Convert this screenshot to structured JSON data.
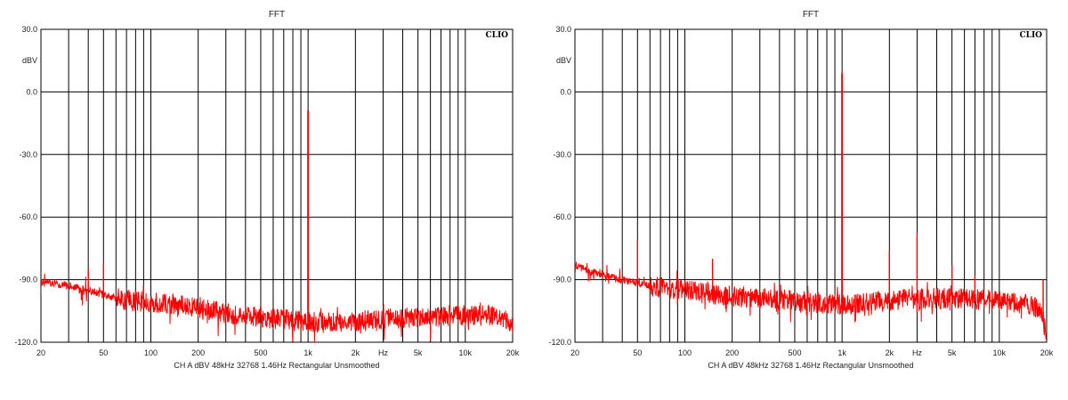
{
  "chart_data": [
    {
      "type": "line",
      "title": "FFT",
      "brand": "CLIO",
      "ylabel": "dBV",
      "footer": "CH A   dBV   48kHz   32768   1.46Hz   Rectangular   Unsmoothed",
      "xscale": "log",
      "xlim": [
        20,
        20000
      ],
      "ylim": [
        -120,
        30
      ],
      "grid": true,
      "x_tick_labels": [
        {
          "value": 20,
          "label": "20"
        },
        {
          "value": 50,
          "label": "50"
        },
        {
          "value": 100,
          "label": "100"
        },
        {
          "value": 200,
          "label": "200"
        },
        {
          "value": 500,
          "label": "500"
        },
        {
          "value": 1000,
          "label": "1k"
        },
        {
          "value": 2000,
          "label": "2k"
        },
        {
          "value": 3000,
          "label": "Hz"
        },
        {
          "value": 5000,
          "label": "5k"
        },
        {
          "value": 10000,
          "label": "10k"
        },
        {
          "value": 20000,
          "label": "20k"
        }
      ],
      "y_tick_labels": [
        {
          "value": 30,
          "label": "30.0"
        },
        {
          "value": 0,
          "label": "0.0"
        },
        {
          "value": -30,
          "label": "-30.0"
        },
        {
          "value": -60,
          "label": "-60.0"
        },
        {
          "value": -90,
          "label": "-90.0"
        },
        {
          "value": -120,
          "label": "-120.0"
        }
      ],
      "series": [
        {
          "color": "#ff0000",
          "noise_floor": [
            [
              20,
              -91
            ],
            [
              25,
              -92
            ],
            [
              30,
              -93
            ],
            [
              40,
              -95
            ],
            [
              60,
              -99
            ],
            [
              100,
              -101
            ],
            [
              150,
              -102
            ],
            [
              200,
              -104
            ],
            [
              300,
              -106
            ],
            [
              500,
              -108
            ],
            [
              700,
              -109
            ],
            [
              1000,
              -110
            ],
            [
              1500,
              -110
            ],
            [
              2000,
              -110
            ],
            [
              3000,
              -109
            ],
            [
              5000,
              -108
            ],
            [
              10000,
              -107
            ],
            [
              15000,
              -107
            ],
            [
              18000,
              -109
            ],
            [
              20000,
              -112
            ]
          ],
          "noise_amplitude": 5,
          "peaks": [
            {
              "x": 40,
              "y": -85
            },
            {
              "x": 50,
              "y": -82
            },
            {
              "x": 80,
              "y": -95
            },
            {
              "x": 1000,
              "y": -9
            }
          ]
        }
      ]
    },
    {
      "type": "line",
      "title": "FFT",
      "brand": "CLIO",
      "ylabel": "dBV",
      "footer": "CH A   dBV   48kHz   32768   1.46Hz   Rectangular   Unsmoothed",
      "xscale": "log",
      "xlim": [
        20,
        20000
      ],
      "ylim": [
        -120,
        30
      ],
      "grid": true,
      "x_tick_labels": [
        {
          "value": 20,
          "label": "20"
        },
        {
          "value": 50,
          "label": "50"
        },
        {
          "value": 100,
          "label": "100"
        },
        {
          "value": 200,
          "label": "200"
        },
        {
          "value": 500,
          "label": "500"
        },
        {
          "value": 1000,
          "label": "1k"
        },
        {
          "value": 2000,
          "label": "2k"
        },
        {
          "value": 3000,
          "label": "Hz"
        },
        {
          "value": 5000,
          "label": "5k"
        },
        {
          "value": 10000,
          "label": "10k"
        },
        {
          "value": 20000,
          "label": "20k"
        }
      ],
      "y_tick_labels": [
        {
          "value": 30,
          "label": "30.0"
        },
        {
          "value": 0,
          "label": "0.0"
        },
        {
          "value": -30,
          "label": "-30.0"
        },
        {
          "value": -60,
          "label": "-60.0"
        },
        {
          "value": -90,
          "label": "-90.0"
        },
        {
          "value": -120,
          "label": "-120.0"
        }
      ],
      "series": [
        {
          "color": "#ff0000",
          "noise_floor": [
            [
              20,
              -83
            ],
            [
              25,
              -86
            ],
            [
              30,
              -88
            ],
            [
              40,
              -90
            ],
            [
              60,
              -93
            ],
            [
              100,
              -95
            ],
            [
              150,
              -97
            ],
            [
              200,
              -98
            ],
            [
              300,
              -99
            ],
            [
              500,
              -100
            ],
            [
              700,
              -101
            ],
            [
              1000,
              -102
            ],
            [
              1500,
              -101
            ],
            [
              2000,
              -100
            ],
            [
              3000,
              -99
            ],
            [
              5000,
              -99
            ],
            [
              10000,
              -100
            ],
            [
              15000,
              -102
            ],
            [
              18000,
              -104
            ],
            [
              20000,
              -115
            ]
          ],
          "noise_amplitude": 5,
          "peaks": [
            {
              "x": 50,
              "y": -71
            },
            {
              "x": 150,
              "y": -80
            },
            {
              "x": 1000,
              "y": 9
            },
            {
              "x": 2000,
              "y": -76
            },
            {
              "x": 3000,
              "y": -68
            },
            {
              "x": 5000,
              "y": -83
            },
            {
              "x": 7000,
              "y": -88
            },
            {
              "x": 19000,
              "y": -90
            }
          ]
        }
      ]
    }
  ]
}
